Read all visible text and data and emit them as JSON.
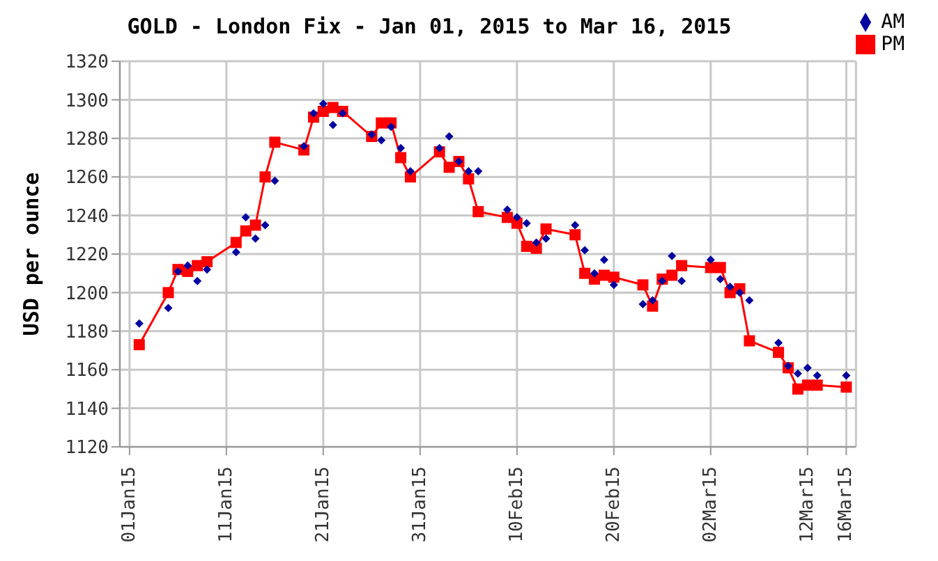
{
  "chart_data": {
    "type": "line",
    "title": "GOLD - London Fix - Jan 01, 2015 to Mar 16, 2015",
    "ylabel": "USD per ounce",
    "x": [
      "2015-01-02",
      "2015-01-05",
      "2015-01-06",
      "2015-01-07",
      "2015-01-08",
      "2015-01-09",
      "2015-01-12",
      "2015-01-13",
      "2015-01-14",
      "2015-01-15",
      "2015-01-16",
      "2015-01-19",
      "2015-01-20",
      "2015-01-21",
      "2015-01-22",
      "2015-01-23",
      "2015-01-26",
      "2015-01-27",
      "2015-01-28",
      "2015-01-29",
      "2015-01-30",
      "2015-02-02",
      "2015-02-03",
      "2015-02-04",
      "2015-02-05",
      "2015-02-06",
      "2015-02-09",
      "2015-02-10",
      "2015-02-11",
      "2015-02-12",
      "2015-02-13",
      "2015-02-16",
      "2015-02-17",
      "2015-02-18",
      "2015-02-19",
      "2015-02-20",
      "2015-02-23",
      "2015-02-24",
      "2015-02-25",
      "2015-02-26",
      "2015-02-27",
      "2015-03-02",
      "2015-03-03",
      "2015-03-04",
      "2015-03-05",
      "2015-03-06",
      "2015-03-09",
      "2015-03-10",
      "2015-03-11",
      "2015-03-12",
      "2015-03-13",
      "2015-03-16"
    ],
    "series": [
      {
        "name": "AM",
        "type": "scatter",
        "marker": "diamond",
        "color": "#0000a0",
        "values": [
          1184,
          1192,
          1211,
          1214,
          1206,
          1212,
          1221,
          1239,
          1228,
          1235,
          1258,
          1276,
          1293,
          1298,
          1287,
          1293,
          1282,
          1279,
          1286,
          1275,
          1263,
          1275,
          1281,
          1268,
          1263,
          1263,
          1243,
          1239,
          1236,
          1226,
          1228,
          1235,
          1222,
          1210,
          1217,
          1204,
          1194,
          1196,
          1206,
          1219,
          1206,
          1217,
          1207,
          1203,
          1200,
          1196,
          1174,
          1162,
          1158,
          1161,
          1157,
          1157
        ]
      },
      {
        "name": "PM",
        "type": "line",
        "marker": "square",
        "color": "#ff0000",
        "values": [
          1173,
          1200,
          1212,
          1211,
          1214,
          1216,
          1226,
          1232,
          1235,
          1260,
          1278,
          1274,
          1291,
          1294,
          1296,
          1294,
          1281,
          1288,
          1288,
          1270,
          1260,
          1273,
          1265,
          1268,
          1259,
          1242,
          1239,
          1236,
          1224,
          1223,
          1233,
          1230,
          1210,
          1207,
          1209,
          1208,
          1204,
          1193,
          1207,
          1209,
          1214,
          1213,
          1213,
          1200,
          1202,
          1175,
          1169,
          1161,
          1150,
          1152,
          1152,
          1151
        ]
      }
    ],
    "xlim": [
      "2014-12-31",
      "2015-03-17"
    ],
    "xticks": [
      {
        "value": "2015-01-01",
        "label": "01Jan15"
      },
      {
        "value": "2015-01-11",
        "label": "11Jan15"
      },
      {
        "value": "2015-01-21",
        "label": "21Jan15"
      },
      {
        "value": "2015-01-31",
        "label": "31Jan15"
      },
      {
        "value": "2015-02-10",
        "label": "10Feb15"
      },
      {
        "value": "2015-02-20",
        "label": "20Feb15"
      },
      {
        "value": "2015-03-02",
        "label": "02Mar15"
      },
      {
        "value": "2015-03-12",
        "label": "12Mar15"
      },
      {
        "value": "2015-03-16",
        "label": "16Mar15"
      }
    ],
    "ylim": [
      1120,
      1320
    ],
    "yticks": [
      1120,
      1140,
      1160,
      1180,
      1200,
      1220,
      1240,
      1260,
      1280,
      1300,
      1320
    ],
    "grid": true,
    "legend": "top right"
  }
}
